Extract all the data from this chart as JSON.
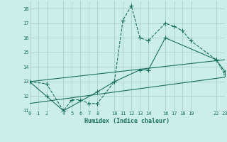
{
  "xlabel": "Humidex (Indice chaleur)",
  "bg_color": "#cceee8",
  "grid_color": "#aad4cc",
  "line_color": "#1a7060",
  "xlim": [
    0,
    23
  ],
  "ylim": [
    11,
    18.5
  ],
  "xticks": [
    0,
    1,
    2,
    4,
    5,
    6,
    7,
    8,
    10,
    11,
    12,
    13,
    14,
    16,
    17,
    18,
    19,
    22,
    23
  ],
  "yticks": [
    11,
    12,
    13,
    14,
    15,
    16,
    17,
    18
  ],
  "series1_x": [
    0,
    2,
    4,
    5,
    6,
    7,
    8,
    10,
    11,
    12,
    13,
    14,
    16,
    17,
    18,
    19,
    22,
    23
  ],
  "series1_y": [
    13.0,
    12.85,
    11.0,
    11.75,
    11.75,
    11.5,
    11.5,
    13.0,
    17.2,
    18.2,
    16.0,
    15.8,
    17.0,
    16.8,
    16.5,
    15.8,
    14.5,
    13.5
  ],
  "series2_x": [
    0,
    2,
    4,
    8,
    10,
    13,
    14,
    16,
    22,
    23
  ],
  "series2_y": [
    13.0,
    12.0,
    11.0,
    12.3,
    13.0,
    13.8,
    13.8,
    16.0,
    14.5,
    13.7
  ],
  "series3_x": [
    0,
    23
  ],
  "series3_y": [
    13.0,
    14.5
  ],
  "series4_x": [
    0,
    23
  ],
  "series4_y": [
    11.5,
    13.3
  ]
}
